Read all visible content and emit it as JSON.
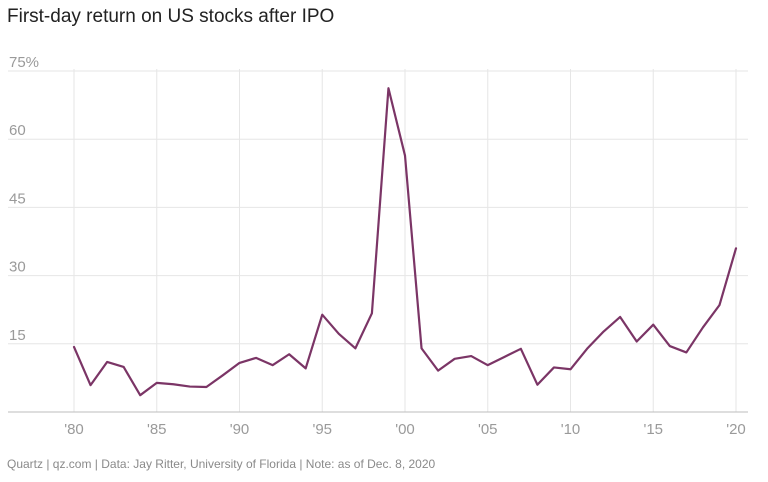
{
  "chart_data": {
    "type": "line",
    "title": "First-day return on US stocks after IPO",
    "xlabel": "",
    "ylabel": "",
    "ylim": [
      0,
      75
    ],
    "xlim": [
      1980,
      2020
    ],
    "y_ticks": [
      {
        "value": 75,
        "label": "75%"
      },
      {
        "value": 60,
        "label": "60"
      },
      {
        "value": 45,
        "label": "45"
      },
      {
        "value": 30,
        "label": "30"
      },
      {
        "value": 15,
        "label": "15"
      }
    ],
    "x_ticks": [
      {
        "value": 1980,
        "label": "'80"
      },
      {
        "value": 1985,
        "label": "'85"
      },
      {
        "value": 1990,
        "label": "'90"
      },
      {
        "value": 1995,
        "label": "'95"
      },
      {
        "value": 2000,
        "label": "'00"
      },
      {
        "value": 2005,
        "label": "'05"
      },
      {
        "value": 2010,
        "label": "'10"
      },
      {
        "value": 2015,
        "label": "'15"
      },
      {
        "value": 2020,
        "label": "'20"
      }
    ],
    "grid": "vertical at x ticks, horizontal at y ticks",
    "color": "#7b3566",
    "series": [
      {
        "x": [
          1980,
          1981,
          1982,
          1983,
          1984,
          1985,
          1986,
          1987,
          1988,
          1989,
          1990,
          1991,
          1992,
          1993,
          1994,
          1995,
          1996,
          1997,
          1998,
          1999,
          2000,
          2001,
          2002,
          2003,
          2004,
          2005,
          2006,
          2007,
          2008,
          2009,
          2010,
          2011,
          2012,
          2013,
          2014,
          2015,
          2016,
          2017,
          2018,
          2019,
          2020
        ],
        "values": [
          14.3,
          5.9,
          11.0,
          9.9,
          3.7,
          6.4,
          6.1,
          5.6,
          5.5,
          8.1,
          10.8,
          11.9,
          10.3,
          12.7,
          9.6,
          21.4,
          17.2,
          14.0,
          21.7,
          71.2,
          56.4,
          14.0,
          9.1,
          11.7,
          12.3,
          10.3,
          12.1,
          13.9,
          6.0,
          9.8,
          9.4,
          13.9,
          17.7,
          20.9,
          15.5,
          19.2,
          14.5,
          13.1,
          18.6,
          23.5,
          36.0
        ]
      }
    ]
  },
  "footer": {
    "text": "Quartz | qz.com | Data: Jay Ritter, University of Florida | Note: as of Dec. 8, 2020"
  }
}
